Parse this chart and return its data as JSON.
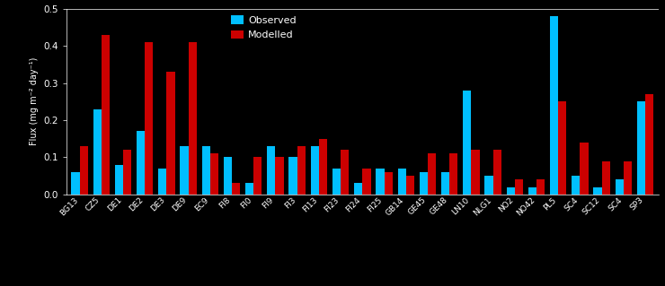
{
  "categories": [
    "BG13",
    "CZ5",
    "DE1",
    "DE2",
    "DE3",
    "DE9",
    "EC9",
    "FI8",
    "FI0",
    "FI9",
    "FI3",
    "FI13",
    "FI23",
    "FI24",
    "FI25",
    "GB14",
    "GE45",
    "GE48",
    "LN10",
    "NLG1",
    "NO2",
    "NO42",
    "PL5",
    "SC4",
    "SC12",
    "SC4",
    "SP3"
  ],
  "observed": [
    0.06,
    0.23,
    0.08,
    0.17,
    0.07,
    0.13,
    0.13,
    0.1,
    0.03,
    0.13,
    0.1,
    0.13,
    0.07,
    0.03,
    0.07,
    0.07,
    0.06,
    0.06,
    0.28,
    0.05,
    0.02,
    0.02,
    0.48,
    0.05,
    0.02,
    0.04,
    0.25
  ],
  "modelled": [
    0.13,
    0.43,
    0.12,
    0.41,
    0.33,
    0.41,
    0.11,
    0.03,
    0.1,
    0.1,
    0.13,
    0.15,
    0.12,
    0.07,
    0.06,
    0.05,
    0.11,
    0.11,
    0.12,
    0.12,
    0.04,
    0.04,
    0.25,
    0.14,
    0.09,
    0.09,
    0.27
  ],
  "observed_color": "#00BFFF",
  "modelled_color": "#CC0000",
  "background_color": "#000000",
  "text_color": "#FFFFFF",
  "ylabel": "Flux (mg m⁻² day⁻¹)",
  "ylim": [
    0,
    0.5
  ],
  "yticks": [
    0,
    0.1,
    0.2,
    0.3,
    0.4,
    0.5
  ],
  "legend_observed": "Observed",
  "legend_modelled": "Modelled",
  "bar_width": 0.38,
  "figwidth": 7.4,
  "figheight": 3.19,
  "dpi": 100
}
